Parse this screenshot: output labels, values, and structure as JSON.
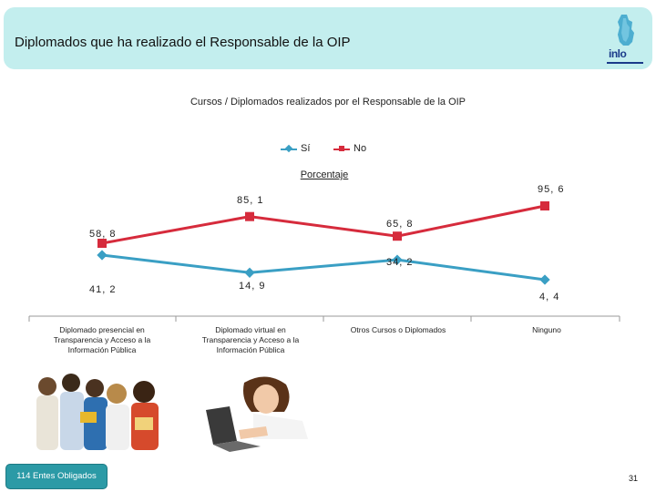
{
  "header": {
    "title": "Diplomados que ha realizado el Responsable de la OIP",
    "logo_text": "inlo",
    "accent": "#c3eeee"
  },
  "chart_data": {
    "type": "line",
    "title": "Cursos / Diplomados realizados por el Responsable de la OIP",
    "subtitle": "Porcentaje",
    "legend_position": "top",
    "categories": [
      "Diplomado presencial en Transparencia y Acceso a la Información Pública",
      "Diplomado virtual en Transparencia y Acceso a la Información Pública",
      "Otros Cursos o Diplomados",
      "Ninguno"
    ],
    "series": [
      {
        "name": "Sí",
        "color": "#3a9fc4",
        "values": [
          41.2,
          14.9,
          34.2,
          4.4
        ],
        "labels": [
          "41, 2",
          "14, 9",
          "34, 2",
          "4, 4"
        ]
      },
      {
        "name": "No",
        "color": "#d62b3c",
        "values": [
          58.8,
          85.1,
          65.8,
          95.6
        ],
        "labels": [
          "58, 8",
          "85, 1",
          "65, 8",
          "95, 6"
        ]
      }
    ],
    "grid": false
  },
  "footer": {
    "badge": "114 Entes Obligados",
    "page_number": "31",
    "badge_color": "#2b9aa6"
  }
}
